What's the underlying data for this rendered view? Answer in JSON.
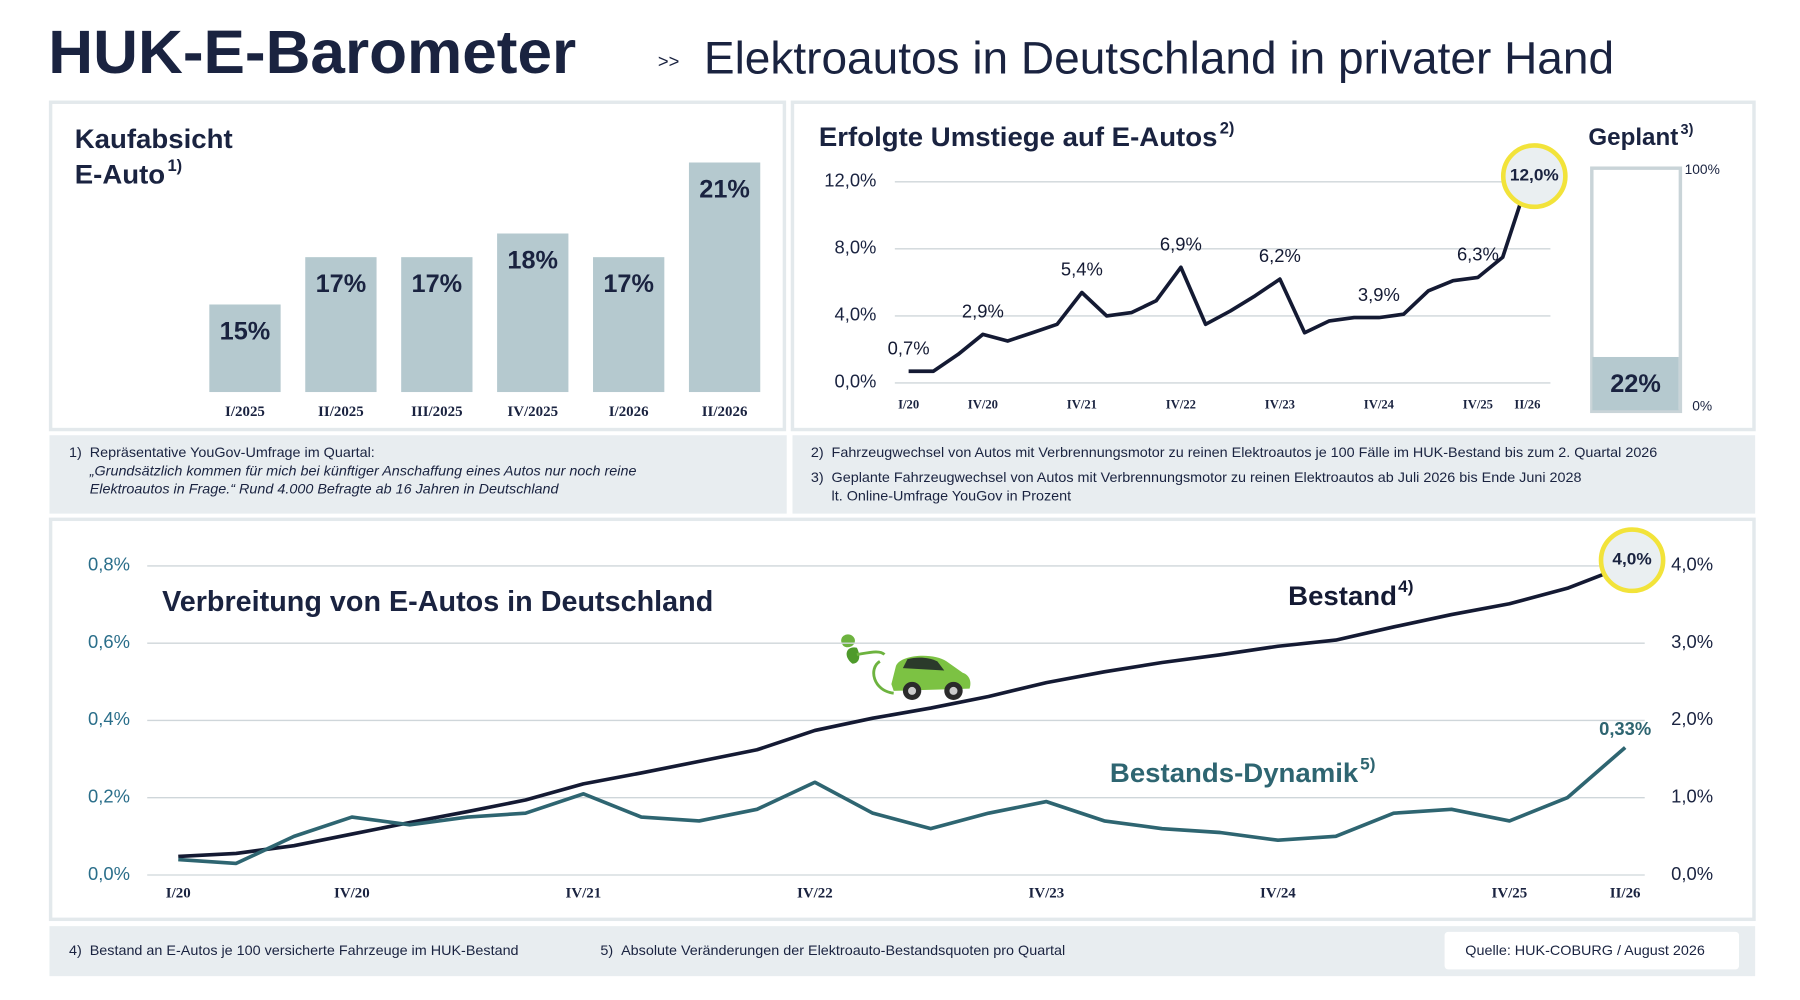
{
  "header": {
    "title": "HUK-E-Barometer",
    "separator": ">>",
    "subtitle": "Elektroautos in Deutschland in privater Hand"
  },
  "chart_data": [
    {
      "type": "bar",
      "title": [
        "Kaufabsicht",
        "E-Auto"
      ],
      "title_note": "1)",
      "categories": [
        "I/2025",
        "II/2025",
        "III/2025",
        "IV/2025",
        "I/2026",
        "II/2026"
      ],
      "values": [
        15,
        17,
        17,
        18,
        17,
        21
      ],
      "value_labels": [
        "15%",
        "17%",
        "17%",
        "18%",
        "17%",
        "21%"
      ],
      "color": "#b5c9cf",
      "ylim": [
        11.3,
        21
      ]
    },
    {
      "type": "line",
      "title": "Erfolgte Umstiege auf E-Autos",
      "title_note": "2)",
      "categories": [
        "I/20",
        null,
        null,
        "IV/20",
        null,
        null,
        null,
        "IV/21",
        null,
        null,
        null,
        "IV/22",
        null,
        null,
        null,
        "IV/23",
        null,
        null,
        null,
        "IV/24",
        null,
        null,
        null,
        "IV/25",
        null,
        "II/26"
      ],
      "values": [
        0.7,
        0.7,
        1.7,
        2.9,
        2.5,
        3.0,
        3.5,
        5.4,
        4.0,
        4.2,
        4.9,
        6.9,
        3.5,
        4.3,
        5.2,
        6.2,
        3.0,
        3.7,
        3.9,
        3.9,
        4.1,
        5.5,
        6.1,
        6.3,
        7.5,
        12.0
      ],
      "value_labels": [
        "0,7%",
        null,
        null,
        "2,9%",
        null,
        null,
        null,
        "5,4%",
        null,
        null,
        null,
        "6,9%",
        null,
        null,
        null,
        "6,2%",
        null,
        null,
        null,
        "3,9%",
        null,
        null,
        null,
        "6,3%",
        null,
        "12,0%"
      ],
      "color": "#141a33",
      "ylim": [
        0,
        12
      ],
      "yticks": [
        {
          "value": 0,
          "label": "0,0%"
        },
        {
          "value": 4,
          "label": "4,0%"
        },
        {
          "value": 8,
          "label": "8,0%"
        },
        {
          "value": 12,
          "label": "12,0%"
        }
      ],
      "grid": true
    },
    {
      "type": "bar",
      "title": "Geplant",
      "title_note": "3)",
      "values": [
        22
      ],
      "value_labels": [
        "22%"
      ],
      "color": "#b5c9cf",
      "ylim": [
        0,
        100
      ],
      "yticks": [
        {
          "value": 0,
          "label": "0%"
        },
        {
          "value": 100,
          "label": "100%"
        }
      ]
    },
    {
      "type": "line",
      "title": "Verbreitung von E-Autos in Deutschland",
      "categories": [
        "I/20",
        null,
        null,
        "IV/20",
        null,
        null,
        null,
        "IV/21",
        null,
        null,
        null,
        "IV/22",
        null,
        null,
        null,
        "IV/23",
        null,
        null,
        null,
        "IV/24",
        null,
        null,
        null,
        "IV/25",
        null,
        "II/26"
      ],
      "series": [
        {
          "name": "Bestand",
          "name_note": "4)",
          "color": "#141a33",
          "axis": "y2",
          "values": [
            0.24,
            0.28,
            0.38,
            0.53,
            0.68,
            0.82,
            0.97,
            1.18,
            1.32,
            1.47,
            1.62,
            1.87,
            2.03,
            2.16,
            2.31,
            2.49,
            2.63,
            2.75,
            2.85,
            2.96,
            3.04,
            3.21,
            3.37,
            3.51,
            3.71,
            4.0
          ],
          "value_labels": [
            null,
            null,
            null,
            null,
            null,
            null,
            null,
            null,
            null,
            null,
            null,
            null,
            null,
            null,
            null,
            null,
            null,
            null,
            null,
            null,
            null,
            null,
            null,
            null,
            null,
            "4,0%"
          ]
        },
        {
          "name": "Bestands-Dynamik",
          "name_note": "5)",
          "color": "#2e6571",
          "values": [
            0.04,
            0.03,
            0.1,
            0.15,
            0.13,
            0.15,
            0.16,
            0.21,
            0.15,
            0.14,
            0.17,
            0.24,
            0.16,
            0.12,
            0.16,
            0.19,
            0.14,
            0.12,
            0.11,
            0.09,
            0.1,
            0.16,
            0.17,
            0.14,
            0.2,
            0.33
          ],
          "value_labels": [
            null,
            null,
            null,
            null,
            null,
            null,
            null,
            null,
            null,
            null,
            null,
            null,
            null,
            null,
            null,
            null,
            null,
            null,
            null,
            null,
            null,
            null,
            null,
            null,
            null,
            "0,33%"
          ]
        }
      ],
      "ylim": [
        0,
        0.8
      ],
      "yticks": [
        {
          "value": 0,
          "label": "0,0%"
        },
        {
          "value": 0.2,
          "label": "0,2%"
        },
        {
          "value": 0.4,
          "label": "0,4%"
        },
        {
          "value": 0.6,
          "label": "0,6%"
        },
        {
          "value": 0.8,
          "label": "0,8%"
        }
      ],
      "y2lim": [
        0,
        4
      ],
      "y2ticks": [
        {
          "value": 0,
          "label": "0,0%"
        },
        {
          "value": 1,
          "label": "1,0%"
        },
        {
          "value": 2,
          "label": "2,0%"
        },
        {
          "value": 3,
          "label": "3,0%"
        },
        {
          "value": 4,
          "label": "4,0%"
        }
      ],
      "grid": true
    }
  ],
  "footnotes": [
    {
      "marker": "1)",
      "lines": [
        "Repräsentative YouGov-Umfrage im Quartal:",
        "„Grundsätzlich kommen für mich bei künftiger Anschaffung eines Autos nur noch reine",
        "Elektroautos in Frage.“ Rund 4.000 Befragte ab 16 Jahren in Deutschland"
      ]
    },
    {
      "marker": "2)",
      "lines": [
        "Fahrzeugwechsel von Autos mit Verbrennungsmotor zu reinen Elektroautos je 100 Fälle im HUK-Bestand bis zum 2. Quartal 2026"
      ]
    },
    {
      "marker": "3)",
      "lines": [
        "Geplante Fahrzeugwechsel von Autos mit Verbrennungsmotor zu reinen Elektroautos ab Juli 2026 bis Ende Juni 2028",
        "lt. Online-Umfrage YouGov in Prozent"
      ]
    },
    {
      "marker": "4)",
      "lines": [
        "Bestand an E-Autos je 100 versicherte Fahrzeuge im HUK-Bestand"
      ]
    },
    {
      "marker": "5)",
      "lines": [
        "Absolute Veränderungen der Elektroauto-Bestandsquoten pro Quartal"
      ]
    }
  ],
  "source": "Quelle: HUK-COBURG / August 2026"
}
